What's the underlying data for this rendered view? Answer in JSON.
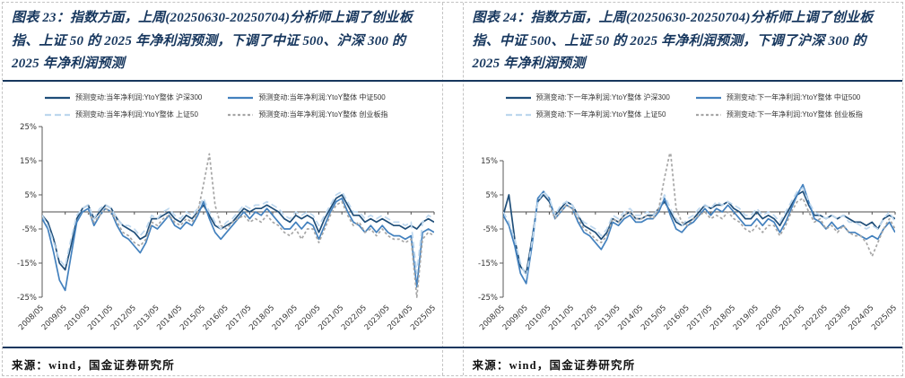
{
  "panels": [
    {
      "title": "图表 23：指数方面，上周(20250630-20250704)分析师上调了创业板指、上证 50 的 2025 年净利润预测，下调了中证 500、沪深 300 的 2025 年净利润预测",
      "source": "来源：wind，国金证券研究所"
    },
    {
      "title": "图表 24：指数方面，上周(20250630-20250704)分析师上调了创业板指、中证 500、上证 50 的 2025 年净利润预测，下调了沪深 300 的 2025 年净利润预测",
      "source": "来源：wind，国金证券研究所"
    }
  ],
  "colors": {
    "title_navy": "#17375E",
    "rule_navy": "#17375E",
    "axis_gray": "#595959",
    "tick_text": "#333333",
    "border_dashed": "#c3c3c3"
  },
  "chart_data": [
    {
      "type": "line",
      "title": "",
      "xlabel": "",
      "ylabel": "",
      "grid": false,
      "legend_position": "top",
      "ylim": [
        -25,
        25
      ],
      "y_ticks": [
        25,
        15,
        5,
        -5,
        -15,
        -25
      ],
      "y_tick_suffix": "%",
      "x_tick_labels": [
        "2008/05",
        "2009/05",
        "2010/05",
        "2011/05",
        "2012/05",
        "2013/05",
        "2014/05",
        "2015/05",
        "2016/05",
        "2017/05",
        "2018/05",
        "2019/05",
        "2020/05",
        "2021/05",
        "2022/05",
        "2023/05",
        "2024/05",
        "2025/05"
      ],
      "points_per_x_tick": 4,
      "series": [
        {
          "name": "预测变动:当年净利润:YtoY整体 沪深300",
          "color": "#1F4E79",
          "style": "solid",
          "values": [
            -1,
            -3,
            -8,
            -15,
            -17,
            -10,
            -2,
            1,
            2,
            -2,
            0,
            2,
            1,
            -2,
            -4,
            -5,
            -6,
            -8,
            -7,
            -2,
            -2,
            -1,
            0,
            -2,
            -3,
            -1,
            -2,
            0,
            2,
            -1,
            -4,
            -5,
            -4,
            -3,
            -1,
            1,
            0,
            1,
            1,
            2,
            1,
            0,
            -2,
            -3,
            -1,
            -2,
            -1,
            -2,
            -6,
            -2,
            1,
            4,
            5,
            2,
            -1,
            -1,
            -3,
            -2,
            -3,
            -2,
            -3,
            -4,
            -4,
            -5,
            -4,
            -5,
            -3,
            -2,
            -3
          ]
        },
        {
          "name": "预测变动:当年净利润:YtoY整体 中证500",
          "color": "#4381BE",
          "style": "solid",
          "values": [
            -2,
            -5,
            -12,
            -20,
            -23,
            -13,
            -3,
            0,
            1,
            -4,
            -1,
            1,
            0,
            -4,
            -7,
            -8,
            -10,
            -12,
            -9,
            -4,
            -5,
            -3,
            -1,
            -4,
            -5,
            -3,
            -4,
            -1,
            3,
            -2,
            -6,
            -8,
            -6,
            -4,
            -2,
            0,
            -2,
            0,
            -1,
            1,
            -1,
            -3,
            -5,
            -5,
            -3,
            -5,
            -3,
            -4,
            -8,
            -4,
            0,
            3,
            4,
            0,
            -3,
            -4,
            -6,
            -4,
            -6,
            -4,
            -6,
            -7,
            -7,
            -8,
            -7,
            -22,
            -6,
            -5,
            -6
          ]
        },
        {
          "name": "预测变动:当年净利润:YtoY整体 上证50",
          "color": "#BDD7EE",
          "style": "dashed",
          "values": [
            -1,
            -4,
            -9,
            -14,
            -16,
            -8,
            -1,
            1,
            2,
            -2,
            1,
            2,
            1,
            -2,
            -4,
            -4,
            -5,
            -7,
            -5,
            -1,
            -2,
            0,
            1,
            -1,
            -2,
            0,
            -1,
            1,
            4,
            0,
            -3,
            -5,
            -3,
            -2,
            0,
            2,
            1,
            2,
            2,
            3,
            2,
            1,
            -1,
            -2,
            0,
            -1,
            0,
            -1,
            -4,
            -1,
            2,
            5,
            6,
            3,
            0,
            0,
            -2,
            -1,
            -2,
            -1,
            -2,
            -3,
            -3,
            -4,
            -3,
            -18,
            -3,
            -1,
            -2
          ]
        },
        {
          "name": "预测变动:当年净利润:YtoY整体 创业板指",
          "color": "#A6A6A6",
          "style": "dotted",
          "values": [
            null,
            null,
            null,
            null,
            null,
            null,
            null,
            null,
            0,
            -3,
            -1,
            1,
            0,
            -3,
            -6,
            -7,
            -9,
            -10,
            -8,
            -3,
            -4,
            -2,
            -1,
            -3,
            -4,
            -2,
            -3,
            0,
            8,
            17,
            2,
            -4,
            -5,
            -3,
            -2,
            -1,
            -3,
            -2,
            -3,
            -1,
            -3,
            -4,
            -6,
            -7,
            -5,
            -8,
            -5,
            -5,
            -9,
            -5,
            -1,
            2,
            3,
            -1,
            -4,
            -3,
            -6,
            -5,
            -7,
            -5,
            -7,
            -8,
            -8,
            -9,
            -8,
            -25,
            -8,
            -6,
            -7
          ]
        }
      ]
    },
    {
      "type": "line",
      "title": "",
      "xlabel": "",
      "ylabel": "",
      "grid": false,
      "legend_position": "top",
      "ylim": [
        -25,
        15
      ],
      "y_ticks": [
        15,
        5,
        -5,
        -15,
        -25
      ],
      "y_tick_suffix": "%",
      "x_tick_labels": [
        "2008/05",
        "2009/05",
        "2010/05",
        "2011/05",
        "2012/05",
        "2013/05",
        "2014/05",
        "2015/05",
        "2016/05",
        "2017/05",
        "2018/05",
        "2019/05",
        "2020/05",
        "2021/05",
        "2022/05",
        "2023/05",
        "2024/05",
        "2025/05"
      ],
      "points_per_x_tick": 4,
      "series": [
        {
          "name": "预测变动:下一年净利润:YtoY整体 沪深300",
          "color": "#1F4E79",
          "style": "solid",
          "values": [
            -1,
            5,
            -8,
            -16,
            -18,
            -8,
            3,
            5,
            3,
            -1,
            1,
            3,
            2,
            -1,
            -4,
            -5,
            -6,
            -8,
            -6,
            -2,
            -3,
            -1,
            0,
            -2,
            -2,
            -1,
            -1,
            1,
            3,
            0,
            -3,
            -4,
            -3,
            -2,
            0,
            2,
            1,
            2,
            2,
            3,
            1,
            0,
            -2,
            -2,
            0,
            -2,
            -1,
            -2,
            -4,
            -1,
            2,
            5,
            6,
            2,
            -1,
            -1,
            -2,
            -1,
            -2,
            -1,
            -2,
            -3,
            -3,
            -4,
            -3,
            -5,
            -2,
            -1,
            -2
          ]
        },
        {
          "name": "预测变动:下一年净利润:YtoY整体 中证500",
          "color": "#4381BE",
          "style": "solid",
          "values": [
            -1,
            -4,
            -10,
            -18,
            -21,
            -10,
            4,
            6,
            4,
            -2,
            0,
            2,
            1,
            -3,
            -6,
            -7,
            -9,
            -11,
            -8,
            -3,
            -4,
            -2,
            -1,
            -3,
            -3,
            -2,
            -2,
            0,
            4,
            -1,
            -5,
            -6,
            -4,
            -3,
            -1,
            1,
            -1,
            1,
            0,
            2,
            0,
            -2,
            -4,
            -4,
            -2,
            -4,
            -2,
            -3,
            -6,
            -3,
            1,
            5,
            8,
            3,
            -2,
            -3,
            -5,
            -3,
            -5,
            -4,
            -6,
            -6,
            -7,
            -8,
            -7,
            -8,
            -5,
            -3,
            -6
          ]
        },
        {
          "name": "预测变动:下一年净利润:YtoY整体 上证50",
          "color": "#BDD7EE",
          "style": "dashed",
          "values": [
            0,
            -3,
            -8,
            -15,
            -19,
            -9,
            3,
            6,
            4,
            -1,
            2,
            3,
            2,
            -1,
            -3,
            -4,
            -5,
            -7,
            -5,
            -1,
            -2,
            0,
            1,
            -1,
            -1,
            0,
            -1,
            1,
            5,
            1,
            -2,
            -4,
            -2,
            -1,
            1,
            2,
            1,
            3,
            2,
            3,
            2,
            1,
            -1,
            -1,
            1,
            -1,
            0,
            -1,
            -3,
            0,
            3,
            6,
            7,
            3,
            0,
            -1,
            -2,
            -1,
            -2,
            -1,
            -3,
            -3,
            -4,
            -5,
            -4,
            -5,
            -2,
            0,
            -3
          ]
        },
        {
          "name": "预测变动:下一年净利润:YtoY整体 创业板指",
          "color": "#A6A6A6",
          "style": "dotted",
          "values": [
            null,
            null,
            null,
            null,
            null,
            null,
            null,
            null,
            2,
            -2,
            0,
            2,
            1,
            -2,
            -5,
            -6,
            -8,
            -9,
            -7,
            -2,
            -3,
            -1,
            0,
            -2,
            -2,
            -1,
            -2,
            1,
            10,
            18,
            1,
            -3,
            -4,
            -2,
            -1,
            0,
            -2,
            -1,
            -2,
            0,
            -2,
            -3,
            -5,
            -6,
            -4,
            -6,
            -4,
            -4,
            -7,
            -4,
            0,
            3,
            4,
            0,
            -3,
            -2,
            -5,
            -4,
            -6,
            -4,
            -6,
            -7,
            -7,
            -9,
            -13,
            -9,
            -5,
            -2,
            -5
          ]
        }
      ]
    }
  ]
}
